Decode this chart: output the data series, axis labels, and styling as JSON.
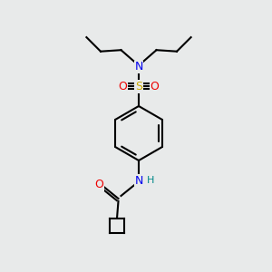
{
  "bg_color": "#e8eaea",
  "atom_colors": {
    "C": "#000000",
    "N": "#0000EE",
    "O": "#EE0000",
    "S": "#CCAA00",
    "H": "#008888"
  },
  "bond_color": "#000000",
  "bond_width": 1.5,
  "figsize": [
    3.0,
    3.0
  ],
  "dpi": 100,
  "xlim": [
    0,
    10
  ],
  "ylim": [
    0,
    10
  ]
}
